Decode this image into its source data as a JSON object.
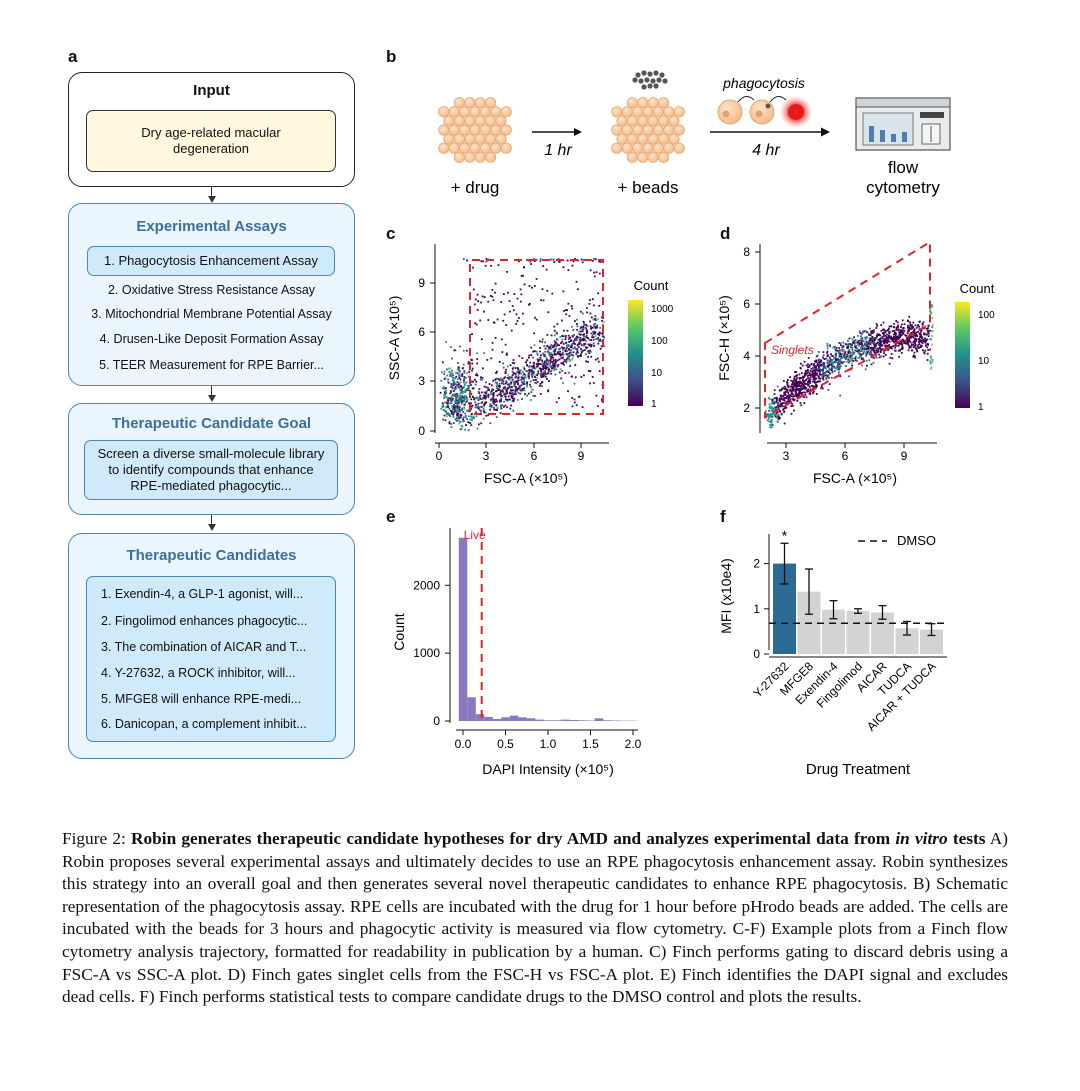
{
  "panel_labels": {
    "a": "a",
    "b": "b",
    "c": "c",
    "d": "d",
    "e": "e",
    "f": "f"
  },
  "panel_a": {
    "input": {
      "title": "Input",
      "text": "Dry age-related macular degeneration"
    },
    "assays": {
      "title": "Experimental Assays",
      "items": [
        "1. Phagocytosis Enhancement Assay",
        "2. Oxidative Stress Resistance Assay",
        "3. Mitochondrial Membrane Potential Assay",
        "4. Drusen-Like Deposit Formation Assay",
        "5. TEER Measurement for RPE Barrier..."
      ]
    },
    "goal": {
      "title": "Therapeutic Candidate Goal",
      "text": "Screen a diverse small-molecule library to identify compounds that enhance RPE-mediated phagocytic..."
    },
    "candidates": {
      "title": "Therapeutic Candidates",
      "items": [
        "1. Exendin-4, a GLP-1 agonist, will...",
        "2. Fingolimod enhances phagocytic...",
        "3. The combination of AICAR and T...",
        "4. Y-27632, a ROCK inhibitor, will...",
        "5. MFGE8 will enhance RPE-medi...",
        "6. Danicopan, a complement inhibit..."
      ]
    }
  },
  "panel_b": {
    "drug_label": "+ drug",
    "beads_label": "+ beads",
    "time1": "1 hr",
    "phago_label": "phagocytosis",
    "time2": "4 hr",
    "flow_line1": "flow",
    "flow_line2": "cytometry"
  },
  "panel_c": {
    "xlabel": "FSC-A (×10⁵)",
    "ylabel": "SSC-A (×10⁵)",
    "legend_title": "Count",
    "legend_ticks": [
      "1000",
      "100",
      "10",
      "1"
    ],
    "x_ticks": [
      "0",
      "3",
      "6",
      "9"
    ],
    "y_ticks": [
      "0",
      "3",
      "6",
      "9"
    ]
  },
  "panel_d": {
    "xlabel": "FSC-A (×10⁵)",
    "ylabel": "FSC-H (×10⁵)",
    "legend_title": "Count",
    "legend_ticks": [
      "100",
      "10",
      "1"
    ],
    "gate_label": "Singlets",
    "x_ticks": [
      "3",
      "6",
      "9"
    ],
    "y_ticks": [
      "2",
      "4",
      "6",
      "8"
    ]
  },
  "panel_e": {
    "xlabel": "DAPI Intensity (×10⁵)",
    "ylabel": "Count",
    "gate_label": "Live",
    "x_ticks": [
      "0.0",
      "0.5",
      "1.0",
      "1.5",
      "2.0"
    ],
    "y_ticks": [
      "0",
      "1000",
      "2000"
    ]
  },
  "panel_f": {
    "xlabel": "Drug Treatment",
    "ylabel": "MFI (x10e4)",
    "legend": "DMSO",
    "star": "*",
    "y_ticks": [
      "0",
      "1",
      "2"
    ]
  },
  "colors": {
    "highlight_bar": "#2c6a96",
    "bar": "#d3d3d3",
    "hist": "#8b78bd",
    "gate": "#e0242b",
    "box_blue": "#4a86b8"
  },
  "chart_data": [
    {
      "type": "bar",
      "title": "",
      "xlabel": "Drug Treatment",
      "ylabel": "MFI (x10e4)",
      "ylim": [
        0,
        2.6
      ],
      "categories": [
        "Y-27632",
        "MFGE8",
        "Exendin-4",
        "Fingolimod",
        "AICAR",
        "TUDCA",
        "AICAR + TUDCA"
      ],
      "values": [
        2.0,
        1.38,
        0.98,
        0.95,
        0.92,
        0.57,
        0.54
      ],
      "errors": [
        0.45,
        0.5,
        0.2,
        0.05,
        0.15,
        0.15,
        0.13
      ],
      "reference_line": {
        "name": "DMSO",
        "value": 0.68
      }
    },
    {
      "type": "bar",
      "title": "",
      "xlabel": "DAPI Intensity (×10⁵)",
      "ylabel": "Count",
      "xlim": [
        -0.07,
        2.07
      ],
      "ylim": [
        0,
        2800
      ],
      "bin_width": 0.1,
      "bin_starts": [
        -0.05,
        0.05,
        0.15,
        0.25,
        0.35,
        0.45,
        0.55,
        0.65,
        0.75,
        0.85,
        0.95,
        1.05,
        1.15,
        1.25,
        1.35,
        1.45,
        1.55,
        1.65,
        1.75,
        1.85,
        1.95
      ],
      "values": [
        2700,
        350,
        100,
        60,
        30,
        55,
        80,
        55,
        40,
        20,
        10,
        10,
        20,
        15,
        10,
        8,
        40,
        10,
        8,
        5,
        5
      ],
      "gate": {
        "name": "Live",
        "value": 0.22
      }
    }
  ],
  "caption": {
    "prefix": "Figure 2: ",
    "bold": "Robin generates therapeutic candidate hypotheses for dry AMD and analyzes experimental data from ",
    "bold_italic": "in vitro",
    "bold2": " tests",
    "body": " A) Robin proposes several experimental assays and ultimately decides to use an RPE phagocytosis enhancement assay. Robin synthesizes this strategy into an overall goal and then generates several novel therapeutic candidates to enhance RPE phagocytosis.  B) Schematic representation of the phagocytosis assay.  RPE cells are incubated with the drug for 1 hour before pHrodo beads are added. The cells are incubated with the beads for 3 hours and phagocytic activity is measured via flow cytometry. C-F) Example plots from a Finch flow cytometry analysis trajectory, formatted for readability in publication by a human. C) Finch performs gating to discard debris using a FSC-A vs SSC-A plot. D) Finch gates singlet cells from the FSC-H vs FSC-A plot. E) Finch identifies the DAPI signal and excludes dead cells. F) Finch performs statistical tests to compare candidate drugs to the DMSO control and plots the results."
  }
}
